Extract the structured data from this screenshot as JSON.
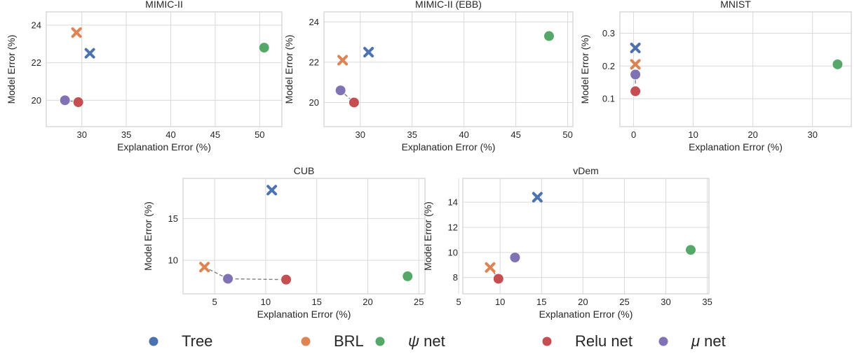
{
  "colors": {
    "Tree": "#4c72b0",
    "BRL": "#dd8452",
    "psi_net": "#55a868",
    "relu_net": "#c44e52",
    "mu_net": "#8172b3",
    "grid": "#d9d9d9",
    "frame": "#cfcfcf",
    "connector": "#7f7f7f"
  },
  "legend": {
    "items": [
      {
        "key": "Tree",
        "prefix": "",
        "label": "Tree",
        "color": "#4c72b0",
        "marker": "circle"
      },
      {
        "key": "BRL",
        "prefix": "",
        "label": "BRL",
        "color": "#dd8452",
        "marker": "circle"
      },
      {
        "key": "psi_net",
        "prefix": "ψ",
        "label": " net",
        "color": "#55a868",
        "marker": "circle"
      },
      {
        "key": "relu_net",
        "prefix": "",
        "label": "Relu net",
        "color": "#c44e52",
        "marker": "circle"
      },
      {
        "key": "mu_net",
        "prefix": "μ",
        "label": " net",
        "color": "#8172b3",
        "marker": "circle"
      }
    ]
  },
  "chart_data": [
    {
      "type": "scatter",
      "title": "MIMIC-II",
      "xlabel": "Explanation Error (%)",
      "ylabel": "Model Error (%)",
      "xlim": [
        26,
        52.5
      ],
      "ylim": [
        18.6,
        24.7
      ],
      "xticks": [
        30,
        35,
        40,
        45,
        50
      ],
      "yticks": [
        20,
        22,
        24
      ],
      "grid": true,
      "points": [
        {
          "series": "Tree",
          "marker": "x",
          "x": 30.9,
          "y": 22.5
        },
        {
          "series": "BRL",
          "marker": "x",
          "x": 29.4,
          "y": 23.6
        },
        {
          "series": "psi_net",
          "marker": "circle",
          "x": 50.5,
          "y": 22.8
        },
        {
          "series": "relu_net",
          "marker": "circle",
          "x": 29.6,
          "y": 19.9
        },
        {
          "series": "mu_net",
          "marker": "circle",
          "x": 28.1,
          "y": 20.0
        }
      ],
      "pareto": [
        [
          28.1,
          20.0
        ],
        [
          29.6,
          19.9
        ]
      ]
    },
    {
      "type": "scatter",
      "title": "MIMIC-II (EBB)",
      "xlabel": "Explanation Error (%)",
      "ylabel": "Model Error (%)",
      "xlim": [
        26.5,
        50.5
      ],
      "ylim": [
        18.8,
        24.5
      ],
      "xticks": [
        30,
        35,
        40,
        45,
        50
      ],
      "yticks": [
        20,
        22,
        24
      ],
      "grid": true,
      "points": [
        {
          "series": "Tree",
          "marker": "x",
          "x": 30.8,
          "y": 22.5
        },
        {
          "series": "BRL",
          "marker": "x",
          "x": 28.3,
          "y": 22.1
        },
        {
          "series": "psi_net",
          "marker": "circle",
          "x": 48.2,
          "y": 23.3
        },
        {
          "series": "relu_net",
          "marker": "circle",
          "x": 29.4,
          "y": 20.0
        },
        {
          "series": "mu_net",
          "marker": "circle",
          "x": 28.1,
          "y": 20.6
        }
      ],
      "pareto": [
        [
          28.1,
          20.6
        ],
        [
          29.4,
          20.0
        ]
      ]
    },
    {
      "type": "scatter",
      "title": "MNIST",
      "xlabel": "Explanation Error (%)",
      "ylabel": "Model Error (%)",
      "xlim": [
        -2.3,
        36.5
      ],
      "ylim": [
        0.015,
        0.365
      ],
      "xticks": [
        0,
        10,
        20,
        30
      ],
      "yticks": [
        0.1,
        0.2,
        0.3
      ],
      "grid": true,
      "points": [
        {
          "series": "Tree",
          "marker": "x",
          "x": 0.3,
          "y": 0.255
        },
        {
          "series": "BRL",
          "marker": "x",
          "x": 0.3,
          "y": 0.205
        },
        {
          "series": "psi_net",
          "marker": "circle",
          "x": 34.2,
          "y": 0.205
        },
        {
          "series": "relu_net",
          "marker": "circle",
          "x": 0.3,
          "y": 0.123
        },
        {
          "series": "mu_net",
          "marker": "circle",
          "x": 0.3,
          "y": 0.174
        }
      ],
      "pareto": [
        [
          0.3,
          0.174
        ],
        [
          0.3,
          0.123
        ]
      ]
    },
    {
      "type": "scatter",
      "title": "CUB",
      "xlabel": "Explanation Error (%)",
      "ylabel": "Model Error (%)",
      "xlim": [
        1.9,
        25.6
      ],
      "ylim": [
        6.0,
        19.8
      ],
      "xticks": [
        5,
        10,
        15,
        20,
        25
      ],
      "yticks": [
        10,
        15
      ],
      "grid": true,
      "points": [
        {
          "series": "Tree",
          "marker": "x",
          "x": 10.6,
          "y": 18.4
        },
        {
          "series": "BRL",
          "marker": "x",
          "x": 4.0,
          "y": 9.2
        },
        {
          "series": "psi_net",
          "marker": "circle",
          "x": 23.9,
          "y": 8.1
        },
        {
          "series": "relu_net",
          "marker": "circle",
          "x": 12.0,
          "y": 7.7
        },
        {
          "series": "mu_net",
          "marker": "circle",
          "x": 6.3,
          "y": 7.8
        }
      ],
      "pareto": [
        [
          4.0,
          9.2
        ],
        [
          6.3,
          7.8
        ],
        [
          12.0,
          7.7
        ]
      ]
    },
    {
      "type": "scatter",
      "title": "vDem",
      "xlabel": "Explanation Error (%)",
      "ylabel": "Model Error (%)",
      "xlim": [
        5.5,
        35.2
      ],
      "ylim": [
        6.7,
        15.9
      ],
      "xticks": [
        5,
        10,
        15,
        20,
        25,
        30,
        35
      ],
      "yticks": [
        8,
        10,
        12,
        14
      ],
      "grid": true,
      "points": [
        {
          "series": "Tree",
          "marker": "x",
          "x": 14.5,
          "y": 14.4
        },
        {
          "series": "BRL",
          "marker": "x",
          "x": 8.8,
          "y": 8.8
        },
        {
          "series": "psi_net",
          "marker": "circle",
          "x": 33.0,
          "y": 10.2
        },
        {
          "series": "relu_net",
          "marker": "circle",
          "x": 9.8,
          "y": 7.9
        },
        {
          "series": "mu_net",
          "marker": "circle",
          "x": 11.8,
          "y": 9.6
        }
      ],
      "pareto": [
        [
          8.8,
          8.8
        ],
        [
          9.8,
          7.9
        ]
      ]
    }
  ]
}
